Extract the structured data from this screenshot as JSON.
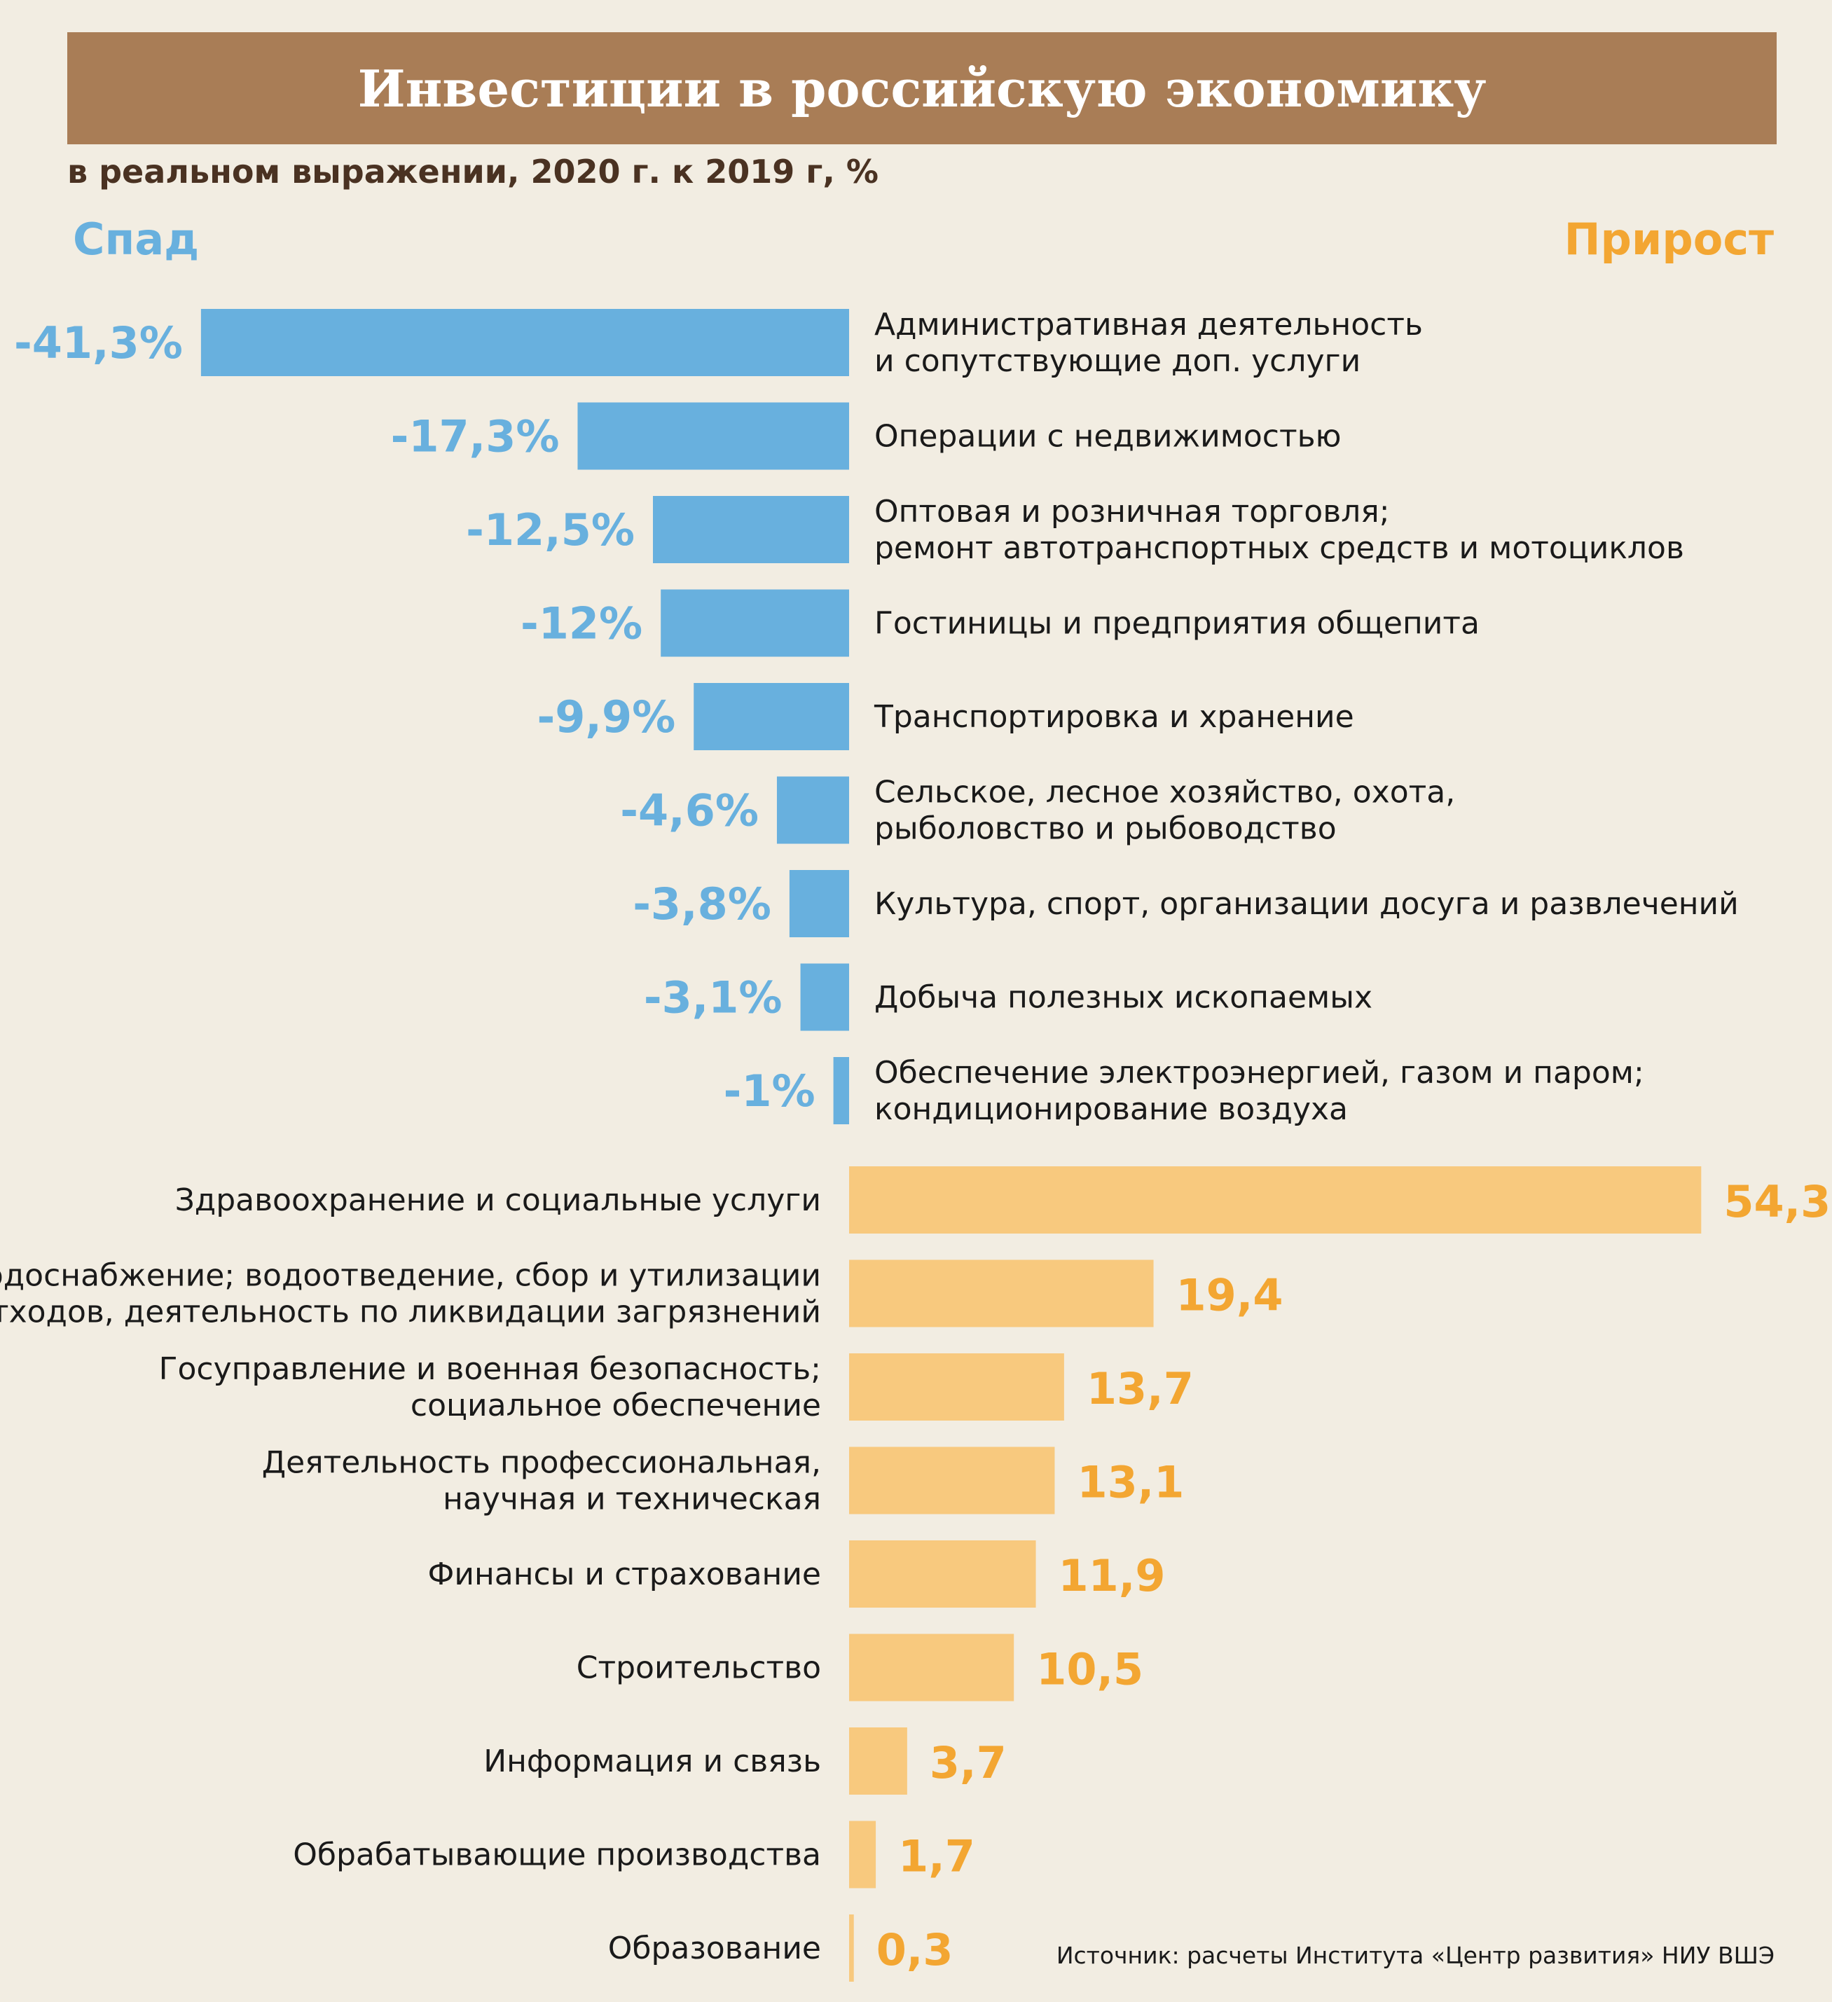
{
  "title": "Инвестиции в российскую экономику",
  "subtitle": "в реальном выражении, 2020 г. к 2019 г, %",
  "negative_label": "Спад",
  "positive_label": "Прирост",
  "source": "Источник: расчеты Института «Центр развития» НИУ ВШЭ",
  "colors": {
    "negative": "#68b0de",
    "positive": "#f8c97e",
    "negative_text": "#68b0de",
    "positive_text": "#f3a632",
    "title_bg": "#a97d56",
    "background": "#f2ede2"
  },
  "chart_data": {
    "type": "bar",
    "orientation": "horizontal",
    "title": "Инвестиции в российскую экономику",
    "subtitle": "в реальном выражении, 2020 г. к 2019 г, %",
    "grid": false,
    "negative": [
      {
        "category": [
          "Административная деятельность",
          "и сопутствующие доп. услуги"
        ],
        "value": -41.3,
        "label": "-41,3%"
      },
      {
        "category": [
          "Операции с недвижимостью"
        ],
        "value": -17.3,
        "label": "-17,3%"
      },
      {
        "category": [
          "Оптовая и розничная торговля;",
          "ремонт автотранспортных средств и мотоциклов"
        ],
        "value": -12.5,
        "label": "-12,5%"
      },
      {
        "category": [
          "Гостиницы и предприятия общепита"
        ],
        "value": -12,
        "label": "-12%"
      },
      {
        "category": [
          "Транспортировка и хранение"
        ],
        "value": -9.9,
        "label": "-9,9%"
      },
      {
        "category": [
          "Сельское, лесное хозяйство, охота,",
          "рыболовство и рыбоводство"
        ],
        "value": -4.6,
        "label": "-4,6%"
      },
      {
        "category": [
          "Культура, спорт, организации досуга и развлечений"
        ],
        "value": -3.8,
        "label": "-3,8%"
      },
      {
        "category": [
          "Добыча полезных ископаемых"
        ],
        "value": -3.1,
        "label": "-3,1%"
      },
      {
        "category": [
          "Обеспечение электроэнергией, газом и паром;",
          "кондиционирование воздуха"
        ],
        "value": -1,
        "label": "-1%"
      }
    ],
    "positive": [
      {
        "category": [
          "Здравоохранение и социальные услуги"
        ],
        "value": 54.3,
        "label": "54,3"
      },
      {
        "category": [
          "Водоснабжение; водоотведение, сбор и утилизации",
          "отходов, деятельность по ликвидации загрязнений"
        ],
        "value": 19.4,
        "label": "19,4"
      },
      {
        "category": [
          "Госуправление и военная безопасность;",
          "социальное обеспечение"
        ],
        "value": 13.7,
        "label": "13,7"
      },
      {
        "category": [
          "Деятельность профессиональная,",
          "научная и техническая"
        ],
        "value": 13.1,
        "label": "13,1"
      },
      {
        "category": [
          "Финансы и страхование"
        ],
        "value": 11.9,
        "label": "11,9"
      },
      {
        "category": [
          "Строительство"
        ],
        "value": 10.5,
        "label": "10,5"
      },
      {
        "category": [
          "Информация и связь"
        ],
        "value": 3.7,
        "label": "3,7"
      },
      {
        "category": [
          "Обрабатывающие производства"
        ],
        "value": 1.7,
        "label": "1,7"
      },
      {
        "category": [
          "Образование"
        ],
        "value": 0.3,
        "label": "0,3"
      }
    ]
  }
}
